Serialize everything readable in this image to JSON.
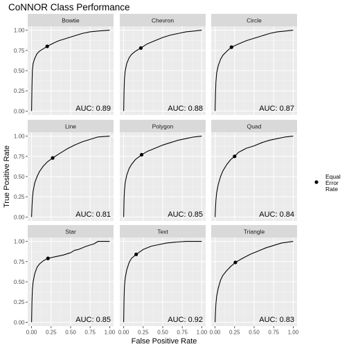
{
  "chart_data": {
    "type": "line",
    "title": "CoNNOR Class Performance",
    "xlabel": "False Positive Rate",
    "ylabel": "True Positive Rate",
    "xlim": [
      0,
      1
    ],
    "ylim": [
      0,
      1
    ],
    "x_ticks": [
      "0.00",
      "0.25",
      "0.50",
      "0.75",
      "1.00"
    ],
    "y_ticks": [
      "0.00",
      "0.25",
      "0.50",
      "0.75",
      "1.00"
    ],
    "tick_values": [
      0,
      0.25,
      0.5,
      0.75,
      1
    ],
    "grid": true,
    "legend": {
      "position": "right",
      "entries": [
        {
          "label_lines": [
            "Equal",
            "Error",
            "Rate"
          ],
          "marker": "point"
        }
      ]
    },
    "panels": [
      {
        "name": "Bowtie",
        "auc_label": "AUC: 0.89",
        "eer": [
          0.2,
          0.8
        ],
        "points": [
          [
            0,
            0
          ],
          [
            0.005,
            0.3
          ],
          [
            0.01,
            0.5
          ],
          [
            0.02,
            0.59
          ],
          [
            0.04,
            0.65
          ],
          [
            0.07,
            0.71
          ],
          [
            0.1,
            0.74
          ],
          [
            0.15,
            0.77
          ],
          [
            0.2,
            0.8
          ],
          [
            0.28,
            0.84
          ],
          [
            0.35,
            0.87
          ],
          [
            0.45,
            0.9
          ],
          [
            0.55,
            0.93
          ],
          [
            0.65,
            0.96
          ],
          [
            0.75,
            0.98
          ],
          [
            0.85,
            0.99
          ],
          [
            1,
            1
          ]
        ]
      },
      {
        "name": "Chevron",
        "auc_label": "AUC: 0.88",
        "eer": [
          0.22,
          0.78
        ],
        "points": [
          [
            0,
            0
          ],
          [
            0.005,
            0.25
          ],
          [
            0.01,
            0.4
          ],
          [
            0.02,
            0.5
          ],
          [
            0.04,
            0.59
          ],
          [
            0.07,
            0.66
          ],
          [
            0.1,
            0.7
          ],
          [
            0.15,
            0.74
          ],
          [
            0.22,
            0.78
          ],
          [
            0.3,
            0.83
          ],
          [
            0.4,
            0.87
          ],
          [
            0.5,
            0.91
          ],
          [
            0.6,
            0.94
          ],
          [
            0.7,
            0.96
          ],
          [
            0.8,
            0.98
          ],
          [
            0.9,
            0.99
          ],
          [
            1,
            1
          ]
        ]
      },
      {
        "name": "Circle",
        "auc_label": "AUC: 0.87",
        "eer": [
          0.21,
          0.79
        ],
        "points": [
          [
            0,
            0
          ],
          [
            0.005,
            0.2
          ],
          [
            0.01,
            0.35
          ],
          [
            0.02,
            0.47
          ],
          [
            0.04,
            0.56
          ],
          [
            0.07,
            0.64
          ],
          [
            0.1,
            0.69
          ],
          [
            0.15,
            0.74
          ],
          [
            0.21,
            0.79
          ],
          [
            0.3,
            0.83
          ],
          [
            0.4,
            0.87
          ],
          [
            0.5,
            0.9
          ],
          [
            0.6,
            0.93
          ],
          [
            0.7,
            0.96
          ],
          [
            0.8,
            0.98
          ],
          [
            0.9,
            0.99
          ],
          [
            1,
            1
          ]
        ]
      },
      {
        "name": "Line",
        "auc_label": "AUC: 0.81",
        "eer": [
          0.27,
          0.73
        ],
        "points": [
          [
            0,
            0
          ],
          [
            0.005,
            0.12
          ],
          [
            0.01,
            0.22
          ],
          [
            0.02,
            0.32
          ],
          [
            0.04,
            0.42
          ],
          [
            0.07,
            0.5
          ],
          [
            0.1,
            0.56
          ],
          [
            0.15,
            0.63
          ],
          [
            0.2,
            0.68
          ],
          [
            0.27,
            0.73
          ],
          [
            0.35,
            0.78
          ],
          [
            0.45,
            0.84
          ],
          [
            0.55,
            0.89
          ],
          [
            0.65,
            0.93
          ],
          [
            0.75,
            0.96
          ],
          [
            0.85,
            0.99
          ],
          [
            1,
            1
          ]
        ]
      },
      {
        "name": "Polygon",
        "auc_label": "AUC: 0.85",
        "eer": [
          0.23,
          0.77
        ],
        "points": [
          [
            0,
            0
          ],
          [
            0.005,
            0.22
          ],
          [
            0.01,
            0.33
          ],
          [
            0.02,
            0.43
          ],
          [
            0.04,
            0.52
          ],
          [
            0.07,
            0.6
          ],
          [
            0.1,
            0.65
          ],
          [
            0.15,
            0.71
          ],
          [
            0.23,
            0.77
          ],
          [
            0.3,
            0.81
          ],
          [
            0.4,
            0.85
          ],
          [
            0.5,
            0.89
          ],
          [
            0.6,
            0.92
          ],
          [
            0.7,
            0.95
          ],
          [
            0.8,
            0.97
          ],
          [
            0.9,
            0.99
          ],
          [
            1,
            1
          ]
        ]
      },
      {
        "name": "Quad",
        "auc_label": "AUC: 0.84",
        "eer": [
          0.25,
          0.75
        ],
        "points": [
          [
            0,
            0
          ],
          [
            0.005,
            0.1
          ],
          [
            0.01,
            0.2
          ],
          [
            0.02,
            0.3
          ],
          [
            0.04,
            0.4
          ],
          [
            0.07,
            0.5
          ],
          [
            0.1,
            0.57
          ],
          [
            0.15,
            0.65
          ],
          [
            0.2,
            0.71
          ],
          [
            0.25,
            0.75
          ],
          [
            0.3,
            0.8
          ],
          [
            0.4,
            0.85
          ],
          [
            0.5,
            0.88
          ],
          [
            0.6,
            0.92
          ],
          [
            0.7,
            0.95
          ],
          [
            0.8,
            0.97
          ],
          [
            0.9,
            0.99
          ],
          [
            1,
            1
          ]
        ]
      },
      {
        "name": "Star",
        "auc_label": "AUC: 0.85",
        "eer": [
          0.21,
          0.79
        ],
        "points": [
          [
            0,
            0
          ],
          [
            0.005,
            0.25
          ],
          [
            0.01,
            0.4
          ],
          [
            0.02,
            0.5
          ],
          [
            0.04,
            0.6
          ],
          [
            0.07,
            0.68
          ],
          [
            0.1,
            0.72
          ],
          [
            0.15,
            0.76
          ],
          [
            0.21,
            0.79
          ],
          [
            0.3,
            0.81
          ],
          [
            0.4,
            0.83
          ],
          [
            0.5,
            0.86
          ],
          [
            0.55,
            0.89
          ],
          [
            0.6,
            0.9
          ],
          [
            0.7,
            0.94
          ],
          [
            0.8,
            0.97
          ],
          [
            0.85,
            1
          ],
          [
            1,
            1
          ]
        ]
      },
      {
        "name": "Text",
        "auc_label": "AUC: 0.92",
        "eer": [
          0.16,
          0.84
        ],
        "points": [
          [
            0,
            0
          ],
          [
            0.005,
            0.3
          ],
          [
            0.01,
            0.45
          ],
          [
            0.02,
            0.55
          ],
          [
            0.04,
            0.65
          ],
          [
            0.07,
            0.74
          ],
          [
            0.1,
            0.79
          ],
          [
            0.16,
            0.84
          ],
          [
            0.25,
            0.9
          ],
          [
            0.35,
            0.94
          ],
          [
            0.45,
            0.96
          ],
          [
            0.55,
            0.98
          ],
          [
            0.65,
            0.99
          ],
          [
            0.8,
            1
          ],
          [
            1,
            1
          ]
        ]
      },
      {
        "name": "Triangle",
        "auc_label": "AUC: 0.83",
        "eer": [
          0.26,
          0.74
        ],
        "points": [
          [
            0,
            0
          ],
          [
            0.005,
            0.12
          ],
          [
            0.01,
            0.22
          ],
          [
            0.02,
            0.32
          ],
          [
            0.04,
            0.42
          ],
          [
            0.07,
            0.52
          ],
          [
            0.1,
            0.58
          ],
          [
            0.15,
            0.64
          ],
          [
            0.2,
            0.69
          ],
          [
            0.26,
            0.74
          ],
          [
            0.35,
            0.79
          ],
          [
            0.45,
            0.84
          ],
          [
            0.55,
            0.88
          ],
          [
            0.65,
            0.92
          ],
          [
            0.75,
            0.95
          ],
          [
            0.85,
            0.98
          ],
          [
            1,
            1
          ]
        ]
      }
    ]
  }
}
